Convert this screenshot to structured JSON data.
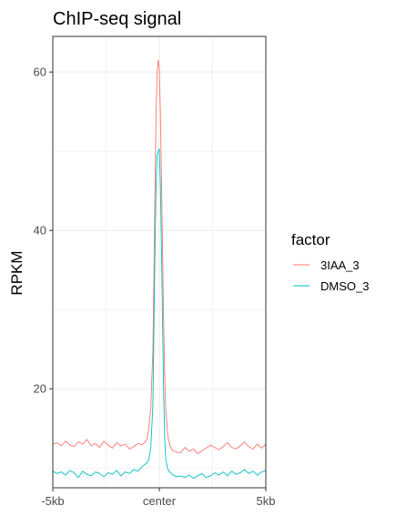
{
  "chart_data": {
    "type": "line",
    "title": "ChIP-seq signal",
    "xlabel": "",
    "ylabel": "RPKM",
    "x_tick_labels": [
      "-5kb",
      "center",
      "5kb"
    ],
    "x_tick_positions": [
      -5,
      0,
      5
    ],
    "xlim": [
      -5,
      5
    ],
    "y_ticks": [
      20,
      40,
      60
    ],
    "ylim": [
      7.5,
      64.5
    ],
    "grid": true,
    "legend": {
      "title": "factor",
      "placement": "right"
    },
    "series": [
      {
        "name": "3IAA_3",
        "color": "#F8766D",
        "x": [
          -5.0,
          -4.8,
          -4.6,
          -4.4,
          -4.2,
          -4.0,
          -3.8,
          -3.6,
          -3.4,
          -3.2,
          -3.0,
          -2.8,
          -2.6,
          -2.4,
          -2.2,
          -2.0,
          -1.8,
          -1.6,
          -1.4,
          -1.2,
          -1.0,
          -0.8,
          -0.6,
          -0.5,
          -0.4,
          -0.3,
          -0.25,
          -0.2,
          -0.15,
          -0.1,
          -0.05,
          0.0,
          0.05,
          0.1,
          0.15,
          0.2,
          0.25,
          0.3,
          0.4,
          0.5,
          0.6,
          0.8,
          1.0,
          1.2,
          1.4,
          1.6,
          1.8,
          2.0,
          2.2,
          2.4,
          2.6,
          2.8,
          3.0,
          3.2,
          3.4,
          3.6,
          3.8,
          4.0,
          4.2,
          4.4,
          4.6,
          4.8,
          5.0
        ],
        "values": [
          13.0,
          13.2,
          12.8,
          13.4,
          12.9,
          12.7,
          13.3,
          13.0,
          13.6,
          12.8,
          13.1,
          12.6,
          13.4,
          12.9,
          12.5,
          13.2,
          12.8,
          13.0,
          12.4,
          12.7,
          13.1,
          12.9,
          13.5,
          14.8,
          17.5,
          25.0,
          35.0,
          46.0,
          55.0,
          60.0,
          61.5,
          60.5,
          55.0,
          47.0,
          38.0,
          29.0,
          22.0,
          17.5,
          14.0,
          12.8,
          12.3,
          12.0,
          11.9,
          12.6,
          12.1,
          12.4,
          11.8,
          12.2,
          12.5,
          12.9,
          12.6,
          12.3,
          12.7,
          13.2,
          12.6,
          12.4,
          12.8,
          13.3,
          12.7,
          12.4,
          13.0,
          12.5,
          13.0
        ]
      },
      {
        "name": "DMSO_3",
        "color": "#00BFC4",
        "x": [
          -5.0,
          -4.8,
          -4.6,
          -4.4,
          -4.2,
          -4.0,
          -3.8,
          -3.6,
          -3.4,
          -3.2,
          -3.0,
          -2.8,
          -2.6,
          -2.4,
          -2.2,
          -2.0,
          -1.8,
          -1.6,
          -1.4,
          -1.2,
          -1.0,
          -0.8,
          -0.6,
          -0.5,
          -0.4,
          -0.3,
          -0.25,
          -0.2,
          -0.15,
          -0.1,
          -0.05,
          0.0,
          0.05,
          0.1,
          0.15,
          0.2,
          0.25,
          0.3,
          0.4,
          0.5,
          0.6,
          0.8,
          1.0,
          1.2,
          1.4,
          1.6,
          1.8,
          2.0,
          2.2,
          2.4,
          2.6,
          2.8,
          3.0,
          3.2,
          3.4,
          3.6,
          3.8,
          4.0,
          4.2,
          4.4,
          4.6,
          4.8,
          5.0
        ],
        "values": [
          9.6,
          9.3,
          9.5,
          9.1,
          9.7,
          9.4,
          8.8,
          9.6,
          9.2,
          9.0,
          9.5,
          9.3,
          8.9,
          9.4,
          9.2,
          9.7,
          9.0,
          9.5,
          9.3,
          9.8,
          9.6,
          10.2,
          10.6,
          11.0,
          12.5,
          18.0,
          28.0,
          38.0,
          46.0,
          49.5,
          50.0,
          50.3,
          46.0,
          38.0,
          29.0,
          20.0,
          14.0,
          11.2,
          9.8,
          9.5,
          9.2,
          8.9,
          9.0,
          8.8,
          9.1,
          8.7,
          9.0,
          9.3,
          8.8,
          9.0,
          9.4,
          9.1,
          9.5,
          9.0,
          9.6,
          9.2,
          9.4,
          9.8,
          9.3,
          9.6,
          9.1,
          9.5,
          9.7
        ]
      }
    ]
  }
}
